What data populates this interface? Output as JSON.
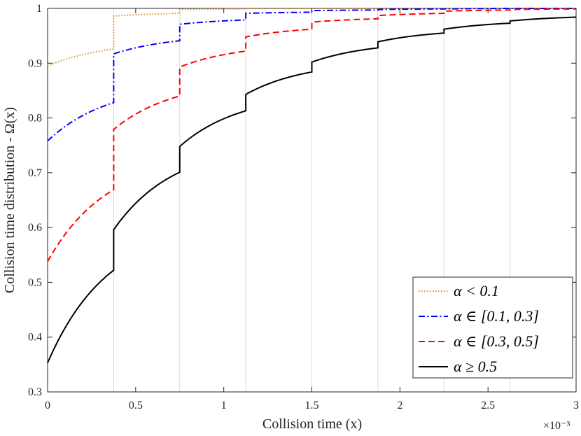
{
  "chart_data": {
    "type": "line",
    "title": "",
    "xlabel": "Collision time (x)",
    "ylabel": "Collision time distribution - Ω(x)",
    "xlim": [
      0,
      0.003
    ],
    "ylim": [
      0.3,
      1.0
    ],
    "x_ticks": [
      0,
      0.0005,
      0.001,
      0.0015,
      0.002,
      0.0025,
      0.003
    ],
    "x_tick_labels": [
      "0",
      "0.5",
      "1",
      "1.5",
      "2",
      "2.5",
      "3"
    ],
    "x_exponent_label": "×10⁻³",
    "y_ticks": [
      0.3,
      0.4,
      0.5,
      0.6,
      0.7,
      0.8,
      0.9,
      1.0
    ],
    "y_tick_labels": [
      "0.3",
      "0.4",
      "0.5",
      "0.6",
      "0.7",
      "0.8",
      "0.9",
      "1"
    ],
    "grid": "vertical lines at breakpoints",
    "grid_x": [
      0.000375,
      0.00075,
      0.001125,
      0.0015,
      0.001875,
      0.00225,
      0.002625,
      0.003
    ],
    "legend_position": "bottom-right",
    "series": [
      {
        "name": "α < 0.1",
        "color": "#D98E2C",
        "dash": "dotted",
        "segments": [
          [
            0.895,
            0.926
          ],
          [
            0.986,
            0.991
          ],
          [
            0.998,
            0.999
          ],
          [
            1.0,
            1.0
          ],
          [
            1.0,
            1.0
          ],
          [
            1.0,
            1.0
          ],
          [
            1.0,
            1.0
          ],
          [
            1.0,
            1.0
          ]
        ]
      },
      {
        "name": "α ∈ [0.1, 0.3]",
        "color": "#0000FF",
        "dash": "dashdot",
        "segments": [
          [
            0.758,
            0.828
          ],
          [
            0.917,
            0.941
          ],
          [
            0.971,
            0.979
          ],
          [
            0.991,
            0.993
          ],
          [
            0.996,
            0.997
          ],
          [
            0.998,
            0.999
          ],
          [
            0.999,
            1.0
          ],
          [
            1.0,
            1.0
          ]
        ]
      },
      {
        "name": "α ∈ [0.3, 0.5]",
        "color": "#FF0000",
        "dash": "dashed",
        "segments": [
          [
            0.538,
            0.669
          ],
          [
            0.779,
            0.84
          ],
          [
            0.893,
            0.922
          ],
          [
            0.948,
            0.962
          ],
          [
            0.975,
            0.981
          ],
          [
            0.987,
            0.991
          ],
          [
            0.995,
            0.997
          ],
          [
            0.998,
            0.999
          ]
        ]
      },
      {
        "name": "α ≥ 0.5",
        "color": "#000000",
        "dash": "solid",
        "segments": [
          [
            0.353,
            0.522
          ],
          [
            0.596,
            0.701
          ],
          [
            0.748,
            0.813
          ],
          [
            0.843,
            0.884
          ],
          [
            0.902,
            0.928
          ],
          [
            0.939,
            0.955
          ],
          [
            0.962,
            0.973
          ],
          [
            0.977,
            0.984
          ]
        ]
      }
    ]
  }
}
